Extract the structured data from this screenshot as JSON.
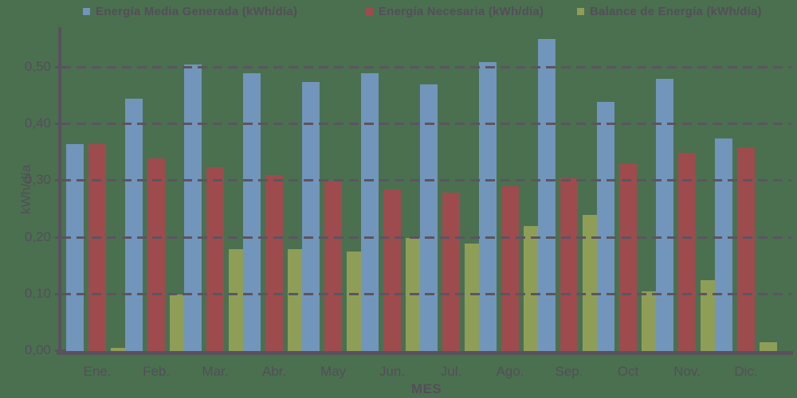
{
  "chart_data": {
    "type": "bar",
    "title": "",
    "xlabel": "MES",
    "ylabel": "kWh/día",
    "ylim": [
      0,
      0.57
    ],
    "grid": "horizontal-dashed",
    "legend_position": "top",
    "background_color": "#4a7050",
    "text_color": "#544e58",
    "grid_color": "#5b5560",
    "axis_color": "#57525c",
    "yticks": [
      "0,00",
      "0,10",
      "0,20",
      "0,30",
      "0,40",
      "0,50"
    ],
    "ytick_values": [
      0,
      0.1,
      0.2,
      0.3,
      0.4,
      0.5
    ],
    "categories": [
      "Ene.",
      "Feb.",
      "Mar.",
      "Abr.",
      "May",
      "Jun.",
      "Jul.",
      "Ago.",
      "Sep.",
      "Oct",
      "Nov.",
      "Dic."
    ],
    "series": [
      {
        "name": "Energía Media Generada (kWh/día)",
        "color": "#7295bb",
        "values": [
          0.365,
          0.445,
          0.505,
          0.49,
          0.475,
          0.49,
          0.47,
          0.51,
          0.55,
          0.44,
          0.48,
          0.375
        ]
      },
      {
        "name": "Energía Necesaria (kWh/día)",
        "color": "#9e4b4e",
        "values": [
          0.365,
          0.34,
          0.325,
          0.31,
          0.3,
          0.285,
          0.28,
          0.29,
          0.305,
          0.33,
          0.35,
          0.36
        ]
      },
      {
        "name": "Balance de Energía (kWh/día)",
        "color": "#8f9e57",
        "values": [
          0.005,
          0.1,
          0.18,
          0.18,
          0.175,
          0.2,
          0.19,
          0.22,
          0.24,
          0.105,
          0.125,
          0.015
        ]
      }
    ]
  }
}
